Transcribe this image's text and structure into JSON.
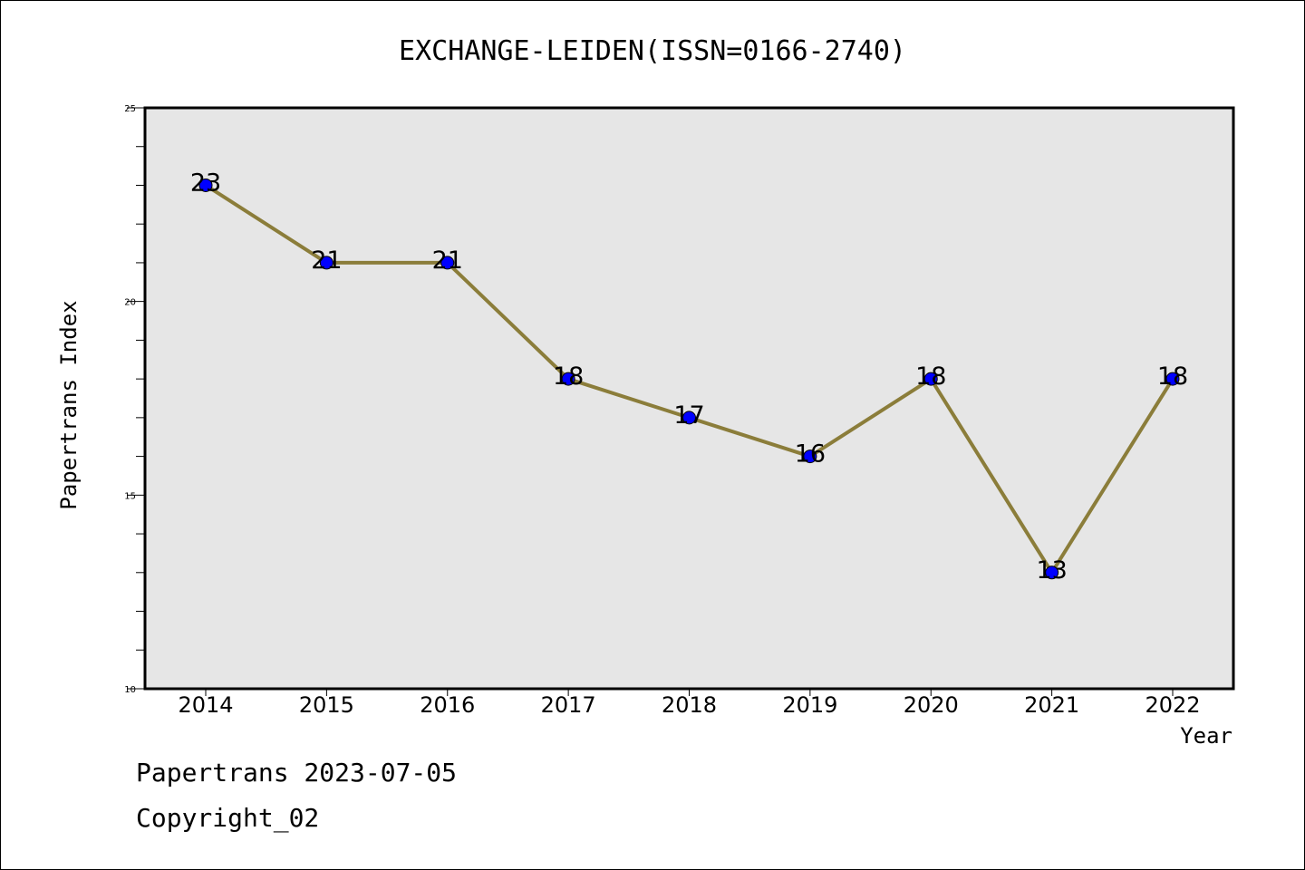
{
  "chart_data": {
    "type": "line",
    "title": "EXCHANGE-LEIDEN(ISSN=0166-2740)",
    "xlabel": "Year",
    "ylabel": "Papertrans Index",
    "categories": [
      "2014",
      "2015",
      "2016",
      "2017",
      "2018",
      "2019",
      "2020",
      "2021",
      "2022"
    ],
    "values": [
      23,
      21,
      21,
      18,
      17,
      16,
      18,
      13,
      18
    ],
    "data_labels": [
      "23",
      "21",
      "21",
      "18",
      "17",
      "16",
      "18",
      "13",
      "18"
    ],
    "ylim": [
      10,
      25
    ],
    "y_ticks": [
      "10",
      "15",
      "20",
      "25"
    ],
    "grid": false,
    "line_color": "#8b7d3a",
    "marker_color": "#0000ff",
    "plot_background": "#e6e6e6"
  },
  "footer": {
    "line1": "Papertrans 2023-07-05",
    "line2": "Copyright_02"
  }
}
